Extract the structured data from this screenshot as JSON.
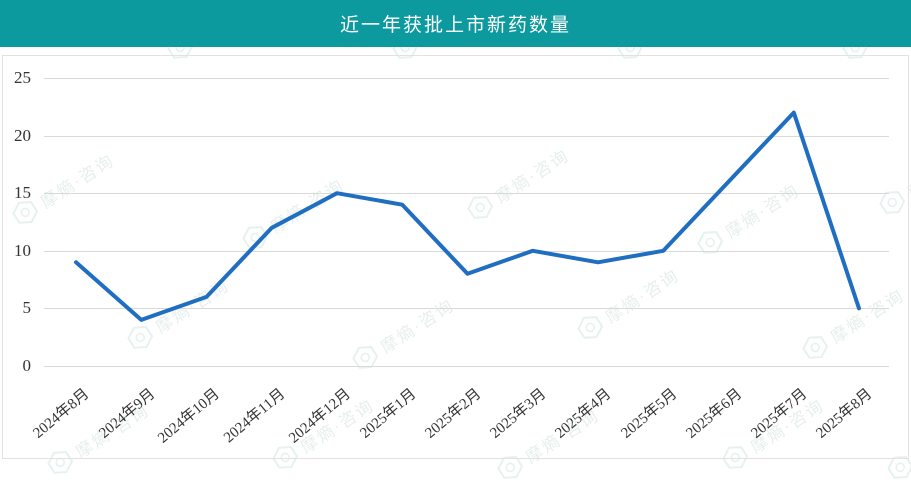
{
  "header": {
    "title": "近一年获批上市新药数量"
  },
  "watermark": {
    "text": "摩熵·咨询"
  },
  "colors": {
    "header_bg": "#0d9a9f",
    "title_text": "#ffffff",
    "line": "#1f6ec2",
    "grid": "#d9d9d9",
    "axis_text": "#333333",
    "panel_border": "#e2e2e2",
    "watermark": "#3c9a8c"
  },
  "chart_data": {
    "type": "line",
    "title": "近一年获批上市新药数量",
    "categories": [
      "2024年8月",
      "2024年9月",
      "2024年10月",
      "2024年11月",
      "2024年12月",
      "2025年1月",
      "2025年2月",
      "2025年3月",
      "2025年4月",
      "2025年5月",
      "2025年6月",
      "2025年7月",
      "2025年8月"
    ],
    "values": [
      9,
      4,
      6,
      12,
      15,
      14,
      8,
      10,
      9,
      10,
      16,
      22,
      5
    ],
    "xlabel": "",
    "ylabel": "",
    "ylim": [
      0,
      25
    ],
    "yticks": [
      0,
      5,
      10,
      15,
      20,
      25
    ],
    "grid": true,
    "legend_position": "none"
  }
}
